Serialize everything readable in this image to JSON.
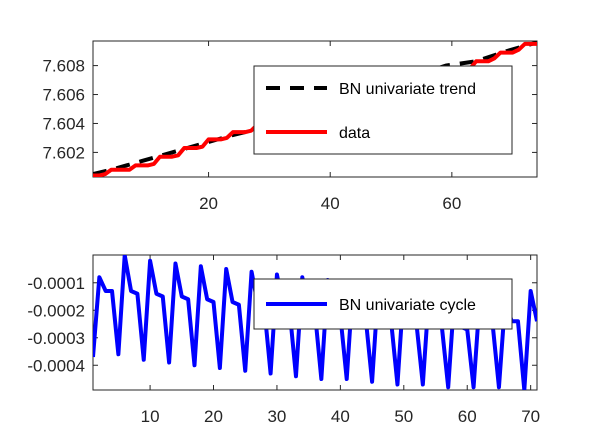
{
  "chart_data": [
    {
      "type": "line",
      "xlim": [
        1,
        74
      ],
      "ylim": [
        7.6003,
        7.6097
      ],
      "xticks": [
        20,
        40,
        60
      ],
      "yticks": [
        7.602,
        7.604,
        7.606,
        7.608
      ],
      "ytick_labels": [
        "7.602",
        "7.604",
        "7.606",
        "7.608"
      ],
      "grid": false,
      "legend_position": "center-right",
      "series": [
        {
          "name": "BN univariate trend",
          "color": "#000000",
          "style": "dashed",
          "x": [
            1,
            4,
            9,
            14,
            19,
            24,
            29,
            34,
            39,
            44,
            49,
            54,
            59,
            64,
            69,
            74
          ],
          "y": [
            7.6005,
            7.6008,
            7.6014,
            7.602,
            7.6026,
            7.6032,
            7.6037,
            7.6042,
            7.6047,
            7.6057,
            7.6065,
            7.6073,
            7.608,
            7.6083,
            7.609,
            7.6096
          ]
        },
        {
          "name": "data",
          "color": "#ff0000",
          "style": "solid",
          "x": [
            1,
            2,
            3,
            4,
            5,
            6,
            7,
            8,
            9,
            10,
            11,
            12,
            13,
            14,
            15,
            16,
            17,
            18,
            19,
            20,
            21,
            22,
            23,
            24,
            25,
            26,
            27,
            28,
            29,
            30,
            31,
            32,
            33,
            34,
            35,
            36,
            37,
            38,
            39,
            40,
            41,
            42,
            43,
            44,
            45,
            46,
            47,
            48,
            49,
            50,
            51,
            52,
            53,
            54,
            55,
            56,
            57,
            58,
            59,
            60,
            61,
            62,
            63,
            64,
            65,
            66,
            67,
            68,
            69,
            70,
            71,
            72,
            73,
            74
          ],
          "y": [
            7.6004,
            7.6004,
            7.6005,
            7.6008,
            7.6008,
            7.6008,
            7.6008,
            7.6011,
            7.6011,
            7.6011,
            7.6012,
            7.6017,
            7.6017,
            7.6017,
            7.6018,
            7.6023,
            7.6023,
            7.6023,
            7.6024,
            7.6029,
            7.6029,
            7.6029,
            7.603,
            7.6034,
            7.6034,
            7.6034,
            7.6035,
            7.6039,
            7.6039,
            7.6039,
            7.604,
            7.6043,
            7.6043,
            7.6043,
            7.6044,
            7.6048,
            7.6048,
            7.6048,
            7.6049,
            7.6053,
            7.6053,
            7.6053,
            7.6054,
            7.6058,
            7.6058,
            7.6058,
            7.6059,
            7.6063,
            7.6063,
            7.6063,
            7.6064,
            7.6067,
            7.6067,
            7.6067,
            7.6068,
            7.6072,
            7.6072,
            7.6072,
            7.6073,
            7.6076,
            7.6076,
            7.6076,
            7.6078,
            7.6083,
            7.6083,
            7.6083,
            7.6085,
            7.6089,
            7.6089,
            7.6089,
            7.6091,
            7.6095,
            7.6095,
            7.6095
          ]
        }
      ]
    },
    {
      "type": "line",
      "xlim": [
        1,
        71
      ],
      "ylim": [
        -0.00049,
        1e-06
      ],
      "xticks": [
        10,
        20,
        30,
        40,
        50,
        60,
        70
      ],
      "yticks": [
        -0.0004,
        -0.0003,
        -0.0002,
        -0.0001
      ],
      "ytick_labels": [
        "-0.0004",
        "-0.0003",
        "-0.0002",
        "-0.0001"
      ],
      "grid": false,
      "legend_position": "center-right",
      "series": [
        {
          "name": "BN univariate cycle",
          "color": "#0000ff",
          "style": "solid",
          "x": [
            1,
            2,
            3,
            4,
            5,
            6,
            7,
            8,
            9,
            10,
            11,
            12,
            13,
            14,
            15,
            16,
            17,
            18,
            19,
            20,
            21,
            22,
            23,
            24,
            25,
            26,
            27,
            28,
            29,
            30,
            31,
            32,
            33,
            34,
            35,
            36,
            37,
            38,
            39,
            40,
            41,
            42,
            43,
            44,
            45,
            46,
            47,
            48,
            49,
            50,
            51,
            52,
            53,
            54,
            55,
            56,
            57,
            58,
            59,
            60,
            61,
            62,
            63,
            64,
            65,
            66,
            67,
            68,
            69,
            70,
            71
          ],
          "y": [
            -0.00037,
            -8e-05,
            -0.00013,
            -0.00013,
            -0.00036,
            0.0,
            -0.00013,
            -0.00014,
            -0.00038,
            -2e-05,
            -0.00014,
            -0.00015,
            -0.00039,
            -3e-05,
            -0.00015,
            -0.00016,
            -0.0004,
            -4e-05,
            -0.00016,
            -0.00017,
            -0.00041,
            -5e-05,
            -0.00017,
            -0.00018,
            -0.00042,
            -6e-05,
            -0.00018,
            -0.00019,
            -0.00043,
            -7e-05,
            -0.00019,
            -0.0002,
            -0.00044,
            -8e-05,
            -0.0002,
            -0.00021,
            -0.00045,
            -9e-05,
            -0.00021,
            -0.00022,
            -0.00045,
            -0.0001,
            -0.00022,
            -0.00023,
            -0.00046,
            -0.00011,
            -0.00023,
            -0.00024,
            -0.00047,
            -0.00012,
            -0.00024,
            -0.00025,
            -0.00047,
            -0.00013,
            -0.00025,
            -0.00026,
            -0.00048,
            -0.00014,
            -0.00026,
            -0.00027,
            -0.00048,
            -0.00015,
            -0.00025,
            -0.00025,
            -0.00048,
            -0.00016,
            -0.00024,
            -0.00024,
            -0.00049,
            -0.00013,
            -0.00024
          ]
        }
      ]
    }
  ]
}
